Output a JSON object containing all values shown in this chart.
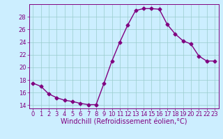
{
  "x": [
    0,
    1,
    2,
    3,
    4,
    5,
    6,
    7,
    8,
    9,
    10,
    11,
    12,
    13,
    14,
    15,
    16,
    17,
    18,
    19,
    20,
    21,
    22,
    23
  ],
  "y": [
    17.5,
    17.0,
    15.8,
    15.2,
    14.8,
    14.6,
    14.3,
    14.1,
    14.1,
    17.5,
    21.0,
    24.0,
    26.7,
    29.0,
    29.3,
    29.3,
    29.2,
    26.8,
    25.3,
    24.2,
    23.7,
    21.8,
    21.0,
    21.0
  ],
  "line_color": "#800080",
  "marker": "D",
  "marker_size": 2.5,
  "bg_color": "#cceeff",
  "grid_color": "#99cccc",
  "xlabel": "Windchill (Refroidissement éolien,°C)",
  "ylim": [
    13.5,
    30.0
  ],
  "xlim": [
    -0.5,
    23.5
  ],
  "yticks": [
    14,
    16,
    18,
    20,
    22,
    24,
    26,
    28
  ],
  "xticks": [
    0,
    1,
    2,
    3,
    4,
    5,
    6,
    7,
    8,
    9,
    10,
    11,
    12,
    13,
    14,
    15,
    16,
    17,
    18,
    19,
    20,
    21,
    22,
    23
  ],
  "tick_color": "#800080",
  "label_fontsize": 7,
  "tick_fontsize": 6,
  "line_width": 1.0
}
